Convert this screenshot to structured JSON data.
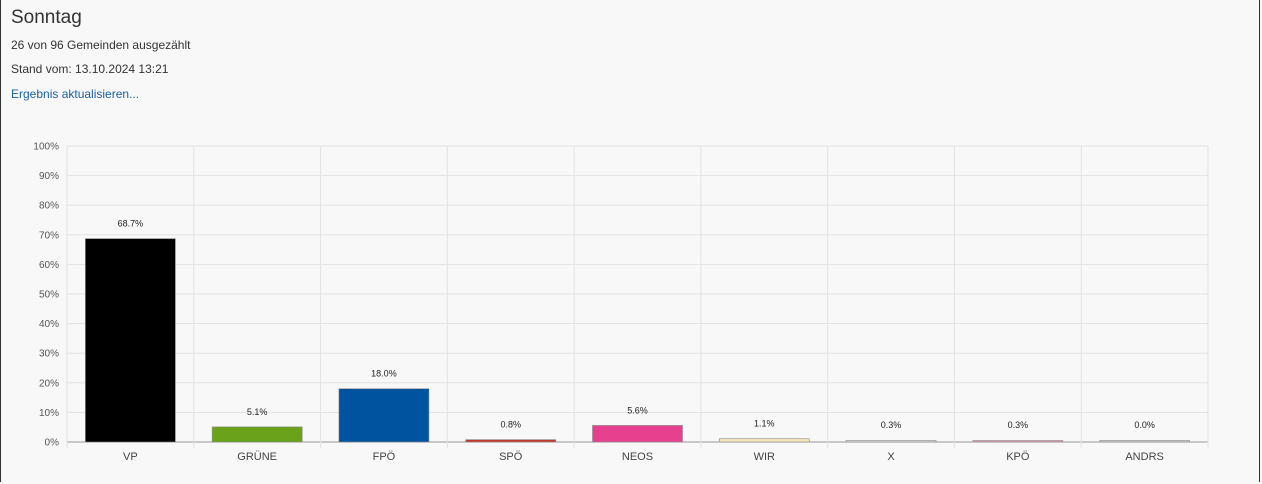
{
  "header": {
    "title": "Sonntag",
    "counted": "26 von 96 Gemeinden ausgezählt",
    "timestamp": "Stand vom: 13.10.2024 13:21",
    "refresh_link": "Ergebnis aktualisieren..."
  },
  "chart_data": {
    "type": "bar",
    "categories": [
      "VP",
      "GRÜNE",
      "FPÖ",
      "SPÖ",
      "NEOS",
      "WIR",
      "X",
      "KPÖ",
      "ANDRS"
    ],
    "values": [
      68.7,
      5.1,
      18.0,
      0.8,
      5.6,
      1.1,
      0.3,
      0.3,
      0.0
    ],
    "value_labels": [
      "68.7%",
      "5.1%",
      "18.0%",
      "0.8%",
      "5.6%",
      "1.1%",
      "0.3%",
      "0.3%",
      "0.0%"
    ],
    "colors": [
      "#000000",
      "#6aa21a",
      "#00539f",
      "#c0392b",
      "#e6418f",
      "#f2e6b8",
      "#d9d9d9",
      "#e89ab0",
      "#cccccc"
    ],
    "y_ticks": [
      "0%",
      "10%",
      "20%",
      "30%",
      "40%",
      "50%",
      "60%",
      "70%",
      "80%",
      "90%",
      "100%"
    ],
    "ylim": [
      0,
      100
    ],
    "grid": true
  }
}
